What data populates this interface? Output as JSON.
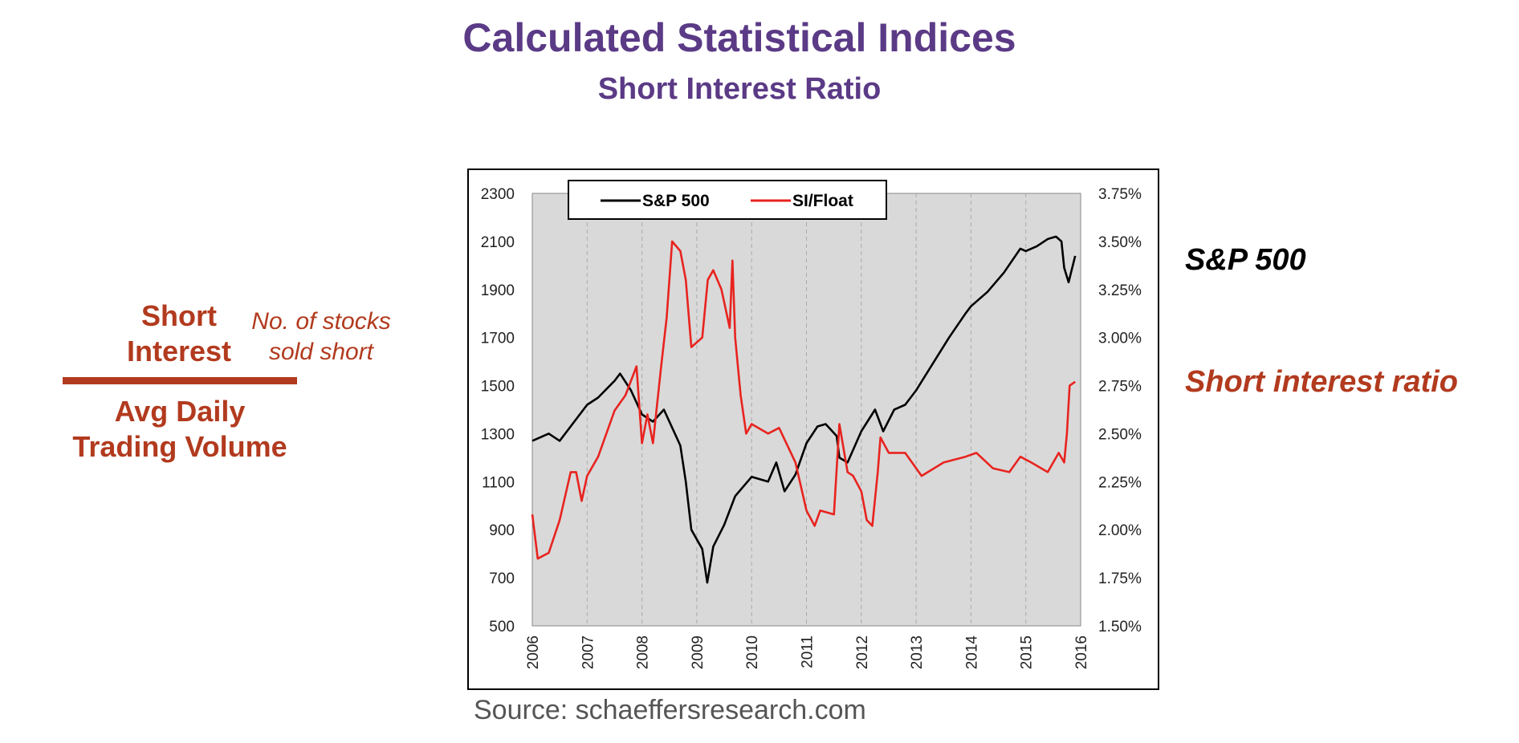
{
  "header": {
    "title": "Calculated Statistical Indices",
    "subtitle": "Short Interest Ratio"
  },
  "formula": {
    "numerator": "Short Interest",
    "numerator_note": "No. of stocks sold short",
    "denominator": "Avg Daily Trading Volume"
  },
  "right_labels": {
    "sp500": "S&P 500",
    "short_interest_ratio": "Short interest ratio"
  },
  "source": "Source: schaeffersresearch.com",
  "colors": {
    "title": "#5b3a86",
    "accent": "#b23a1e",
    "sp500": "#000000",
    "si_float": "#e8231f",
    "plot_bg": "#d9d9d9"
  },
  "chart_data": {
    "type": "line",
    "x_ticks": [
      "2006",
      "2007",
      "2008",
      "2009",
      "2010",
      "2011",
      "2012",
      "2013",
      "2014",
      "2015",
      "2016"
    ],
    "xlim": [
      2006,
      2016
    ],
    "y_left_ticks": [
      "2300",
      "2100",
      "1900",
      "1700",
      "1500",
      "1300",
      "1100",
      "900",
      "700",
      "500"
    ],
    "y_left_lim": [
      500,
      2300
    ],
    "y_right_ticks": [
      "3.75%",
      "3.50%",
      "3.25%",
      "3.00%",
      "2.75%",
      "2.50%",
      "2.25%",
      "2.00%",
      "1.75%",
      "1.50%"
    ],
    "y_right_lim": [
      1.5,
      3.75
    ],
    "grid": "vertical dashed",
    "legend_position": "top-left",
    "series": [
      {
        "name": "S&P 500",
        "axis": "left",
        "color": "#000000",
        "x": [
          2006.0,
          2006.3,
          2006.5,
          2006.8,
          2007.0,
          2007.2,
          2007.5,
          2007.6,
          2007.8,
          2008.0,
          2008.2,
          2008.4,
          2008.6,
          2008.7,
          2008.8,
          2008.9,
          2009.0,
          2009.1,
          2009.19,
          2009.3,
          2009.5,
          2009.7,
          2010.0,
          2010.3,
          2010.45,
          2010.6,
          2010.8,
          2011.0,
          2011.2,
          2011.35,
          2011.55,
          2011.6,
          2011.75,
          2012.0,
          2012.25,
          2012.4,
          2012.6,
          2012.8,
          2013.0,
          2013.3,
          2013.6,
          2013.9,
          2014.0,
          2014.3,
          2014.6,
          2014.9,
          2015.0,
          2015.2,
          2015.4,
          2015.55,
          2015.65,
          2015.7,
          2015.78,
          2015.9
        ],
        "y": [
          1270,
          1300,
          1270,
          1360,
          1420,
          1450,
          1520,
          1550,
          1480,
          1380,
          1350,
          1400,
          1300,
          1250,
          1100,
          900,
          860,
          820,
          680,
          830,
          920,
          1040,
          1120,
          1100,
          1180,
          1060,
          1130,
          1260,
          1330,
          1340,
          1290,
          1200,
          1180,
          1310,
          1400,
          1310,
          1400,
          1420,
          1480,
          1590,
          1700,
          1800,
          1830,
          1890,
          1970,
          2070,
          2060,
          2080,
          2110,
          2120,
          2100,
          1990,
          1930,
          2040
        ]
      },
      {
        "name": "SI/Float",
        "axis": "right",
        "color": "#e8231f",
        "x": [
          2006.0,
          2006.1,
          2006.3,
          2006.5,
          2006.7,
          2006.8,
          2006.9,
          2007.0,
          2007.2,
          2007.5,
          2007.7,
          2007.9,
          2008.0,
          2008.1,
          2008.2,
          2008.35,
          2008.45,
          2008.55,
          2008.7,
          2008.8,
          2008.9,
          2009.1,
          2009.2,
          2009.3,
          2009.45,
          2009.6,
          2009.65,
          2009.7,
          2009.8,
          2009.9,
          2010.0,
          2010.3,
          2010.5,
          2010.8,
          2011.0,
          2011.15,
          2011.25,
          2011.5,
          2011.6,
          2011.75,
          2011.85,
          2012.0,
          2012.1,
          2012.2,
          2012.3,
          2012.35,
          2012.5,
          2012.8,
          2013.1,
          2013.5,
          2013.9,
          2014.1,
          2014.4,
          2014.7,
          2014.9,
          2015.1,
          2015.4,
          2015.6,
          2015.7,
          2015.75,
          2015.8,
          2015.9
        ],
        "y": [
          2.08,
          1.85,
          1.88,
          2.05,
          2.3,
          2.3,
          2.15,
          2.28,
          2.38,
          2.62,
          2.7,
          2.85,
          2.45,
          2.6,
          2.45,
          2.85,
          3.1,
          3.5,
          3.45,
          3.3,
          2.95,
          3.0,
          3.3,
          3.35,
          3.25,
          3.05,
          3.4,
          3.0,
          2.7,
          2.5,
          2.55,
          2.5,
          2.53,
          2.35,
          2.1,
          2.02,
          2.1,
          2.08,
          2.55,
          2.3,
          2.28,
          2.2,
          2.05,
          2.02,
          2.3,
          2.48,
          2.4,
          2.4,
          2.28,
          2.35,
          2.38,
          2.4,
          2.32,
          2.3,
          2.38,
          2.35,
          2.3,
          2.4,
          2.35,
          2.5,
          2.75,
          2.77
        ]
      }
    ]
  }
}
